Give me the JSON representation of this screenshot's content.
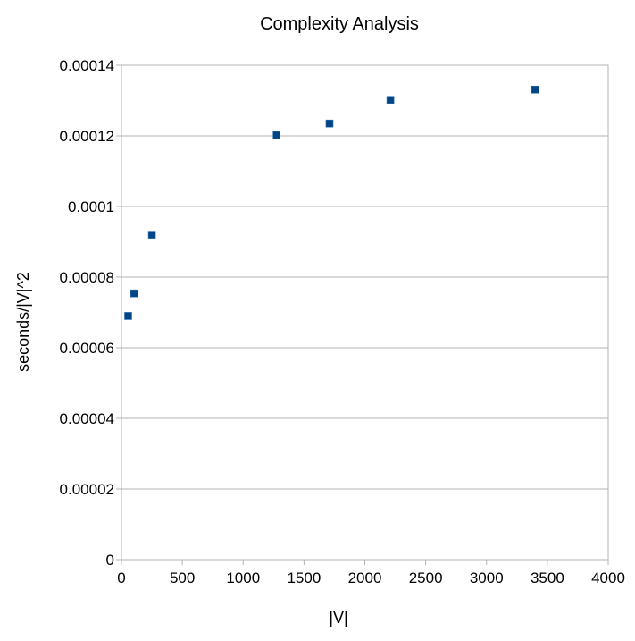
{
  "chart_data": {
    "type": "scatter",
    "title": "Complexity Analysis",
    "xlabel": "|V|",
    "ylabel": "seconds/|V|^2",
    "xlim": [
      0,
      4000
    ],
    "ylim": [
      0,
      0.00014
    ],
    "x_ticks": [
      "0",
      "500",
      "1000",
      "1500",
      "2000",
      "2500",
      "3000",
      "3500",
      "4000"
    ],
    "x_tick_values": [
      0,
      500,
      1000,
      1500,
      2000,
      2500,
      3000,
      3500,
      4000
    ],
    "y_ticks": [
      "0",
      "0.00002",
      "0.00004",
      "0.00006",
      "0.00008",
      "0.0001",
      "0.00012",
      "0.00014"
    ],
    "y_tick_values": [
      0,
      2e-05,
      4e-05,
      6e-05,
      8e-05,
      0.0001,
      0.00012,
      0.00014
    ],
    "grid": "horizontal",
    "legend": "none",
    "marker_color": "#004586",
    "grid_color": "#b3b3b3",
    "points": [
      {
        "x": 55,
        "y": 6.9e-05
      },
      {
        "x": 105,
        "y": 7.54e-05
      },
      {
        "x": 250,
        "y": 9.2e-05
      },
      {
        "x": 1275,
        "y": 0.0001202
      },
      {
        "x": 1710,
        "y": 0.0001235
      },
      {
        "x": 2210,
        "y": 0.0001302
      },
      {
        "x": 3400,
        "y": 0.0001331
      }
    ]
  }
}
